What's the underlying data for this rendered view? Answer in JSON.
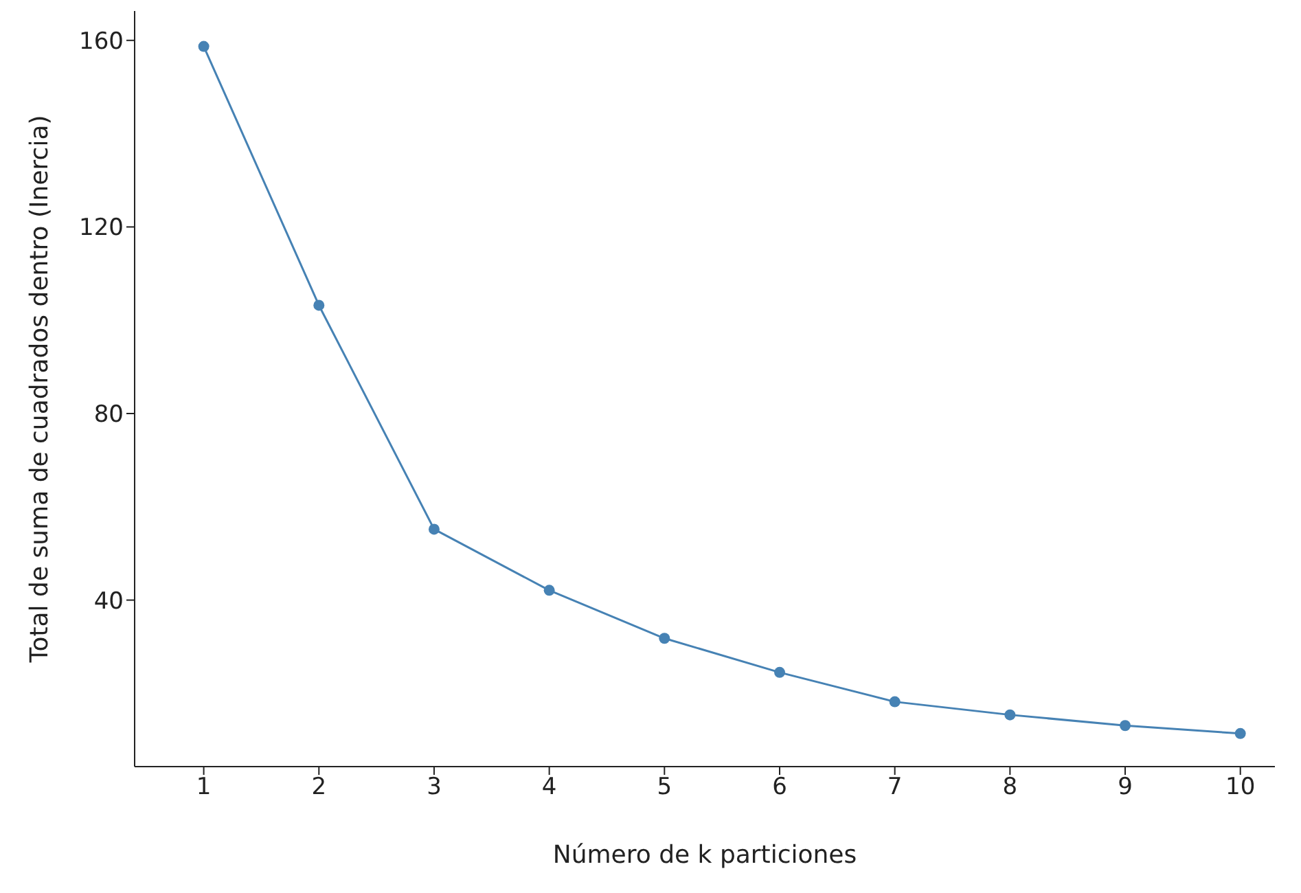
{
  "chart_data": {
    "type": "line",
    "xlabel": "Número de k particiones",
    "ylabel": "Total de suma de cuadrados dentro (Inercia)",
    "x": [
      1,
      2,
      3,
      4,
      5,
      6,
      7,
      8,
      9,
      10
    ],
    "series": [
      {
        "color": "#4682b4",
        "values": [
          158.7,
          103.2,
          55.2,
          42.1,
          31.8,
          24.5,
          18.2,
          15.4,
          13.1,
          11.4
        ]
      }
    ],
    "xlim": [
      0.4,
      10.3
    ],
    "xticks": [
      1,
      2,
      3,
      4,
      5,
      6,
      7,
      8,
      9,
      10
    ],
    "ylim": [
      4.3,
      166.3
    ],
    "yticks": [
      40,
      80,
      120,
      160
    ],
    "grid": false,
    "legend": false,
    "marker": "circle",
    "line_style": "solid"
  }
}
